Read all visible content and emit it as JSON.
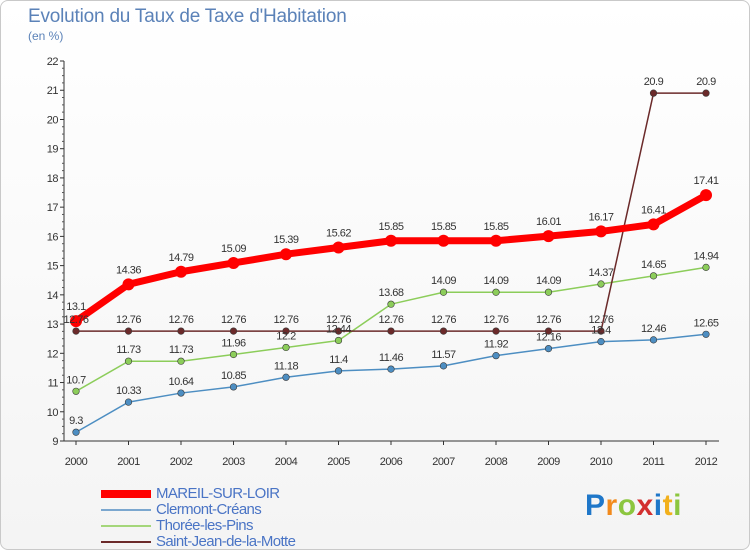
{
  "chart_data": {
    "type": "line",
    "title": "Evolution du Taux de Taxe d'Habitation",
    "subtitle": "(en %)",
    "categories": [
      "2000",
      "2001",
      "2002",
      "2003",
      "2004",
      "2005",
      "2006",
      "2007",
      "2008",
      "2009",
      "2010",
      "2011",
      "2012"
    ],
    "ylim": [
      9,
      22
    ],
    "yticks": [
      9,
      10,
      11,
      12,
      13,
      14,
      15,
      16,
      17,
      18,
      19,
      20,
      21,
      22
    ],
    "grid": false,
    "legend_position": "bottom-left",
    "series": [
      {
        "name": "MAREIL-SUR-LOIR",
        "color": "#ff0000",
        "values": [
          13.1,
          14.36,
          14.79,
          15.09,
          15.39,
          15.62,
          15.85,
          15.85,
          15.85,
          16.01,
          16.17,
          16.41,
          17.41
        ],
        "labels": [
          "13.1",
          "14.36",
          "14.79",
          "15.09",
          "15.39",
          "15.62",
          "15.85",
          "15.85",
          "15.85",
          "16.01",
          "16.17",
          "16.41",
          "17.41"
        ]
      },
      {
        "name": "Clermont-Créans",
        "color": "#4d8ec2",
        "values": [
          9.3,
          10.33,
          10.64,
          10.85,
          11.18,
          11.4,
          11.46,
          11.57,
          11.92,
          12.16,
          12.4,
          12.46,
          12.65
        ],
        "labels": [
          "9.3",
          "10.33",
          "10.64",
          "10.85",
          "11.18",
          "11.4",
          "11.46",
          "11.57",
          "11.92",
          "12.16",
          "12.4",
          "12.46",
          "12.65"
        ]
      },
      {
        "name": "Thorée-les-Pins",
        "color": "#8ccd5a",
        "values": [
          10.7,
          11.73,
          11.73,
          11.96,
          12.2,
          12.44,
          13.68,
          14.09,
          14.09,
          14.09,
          14.37,
          14.65,
          14.94
        ],
        "labels": [
          "10.7",
          "11.73",
          "11.73",
          "11.96",
          "12.2",
          "12.44",
          "13.68",
          "14.09",
          "14.09",
          "14.09",
          "14.37",
          "14.65",
          "14.94"
        ]
      },
      {
        "name": "Saint-Jean-de-la-Motte",
        "color": "#6b2a2a",
        "values": [
          12.76,
          12.76,
          12.76,
          12.76,
          12.76,
          12.76,
          12.76,
          12.76,
          12.76,
          12.76,
          12.76,
          20.9,
          20.9
        ],
        "labels": [
          "12.76",
          "12.76",
          "12.76",
          "12.76",
          "12.76",
          "12.76",
          "12.76",
          "12.76",
          "12.76",
          "12.76",
          "12.76",
          "20.9",
          "20.9"
        ]
      }
    ]
  },
  "legend": [
    {
      "label": "MAREIL-SUR-LOIR",
      "color": "#ff0000"
    },
    {
      "label": "Clermont-Créans",
      "color": "#7ba7cf"
    },
    {
      "label": "Thorée-les-Pins",
      "color": "#a4d67a"
    },
    {
      "label": "Saint-Jean-de-la-Motte",
      "color": "#6b2a2a"
    }
  ],
  "logo": {
    "text": "Proxiti",
    "letters": [
      "P",
      "r",
      "o",
      "x",
      "i",
      "t",
      "i"
    ],
    "colors": [
      "#1f77c9",
      "#f28a1c",
      "#8cc63f",
      "#d32f2f",
      "#1f77c9",
      "#f2b01c",
      "#8cc63f"
    ]
  }
}
